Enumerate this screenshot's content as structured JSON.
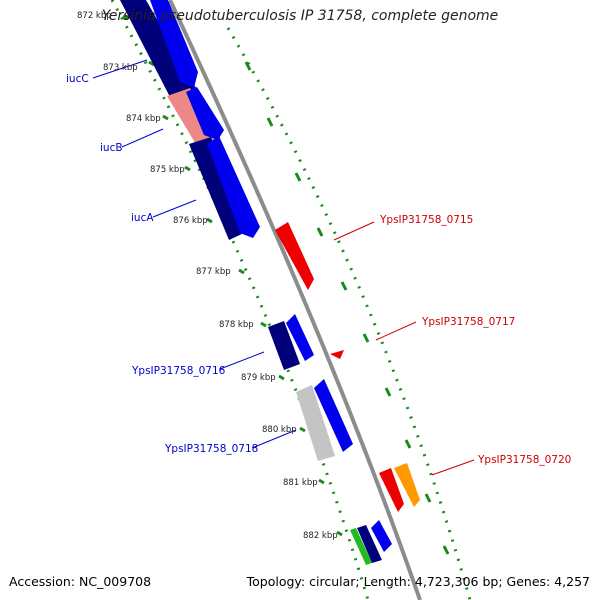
{
  "title": "Yersinia pseudotuberculosis IP 31758, complete genome",
  "footer": {
    "accession": "Accession: NC_009708",
    "stats": "Topology: circular; Length: 4,723,306 bp; Genes: 4,257"
  },
  "ticks": [
    "872 kbp",
    "873 kbp",
    "874 kbp",
    "875 kbp",
    "876 kbp",
    "877 kbp",
    "878 kbp",
    "879 kbp",
    "880 kbp",
    "881 kbp",
    "882 kbp"
  ],
  "gene_labels": {
    "left": [
      "iucC",
      "iucB",
      "iucA",
      "YpsIP31758_0716",
      "YpsIP31758_0718"
    ],
    "right": [
      "YpsIP31758_0715",
      "YpsIP31758_0717",
      "YpsIP31758_0720"
    ]
  },
  "colors": {
    "backbone": "#8c8c8c",
    "tick_green": "#1a8a1a",
    "dark_blue": "#00007a",
    "blue": "#0000ee",
    "pink": "#ee8888",
    "red": "#ee0000",
    "gray": "#c4c4c4",
    "orange": "#ff9900",
    "green": "#22bb22",
    "label_blue": "#0000cc",
    "label_red": "#cc0000"
  }
}
